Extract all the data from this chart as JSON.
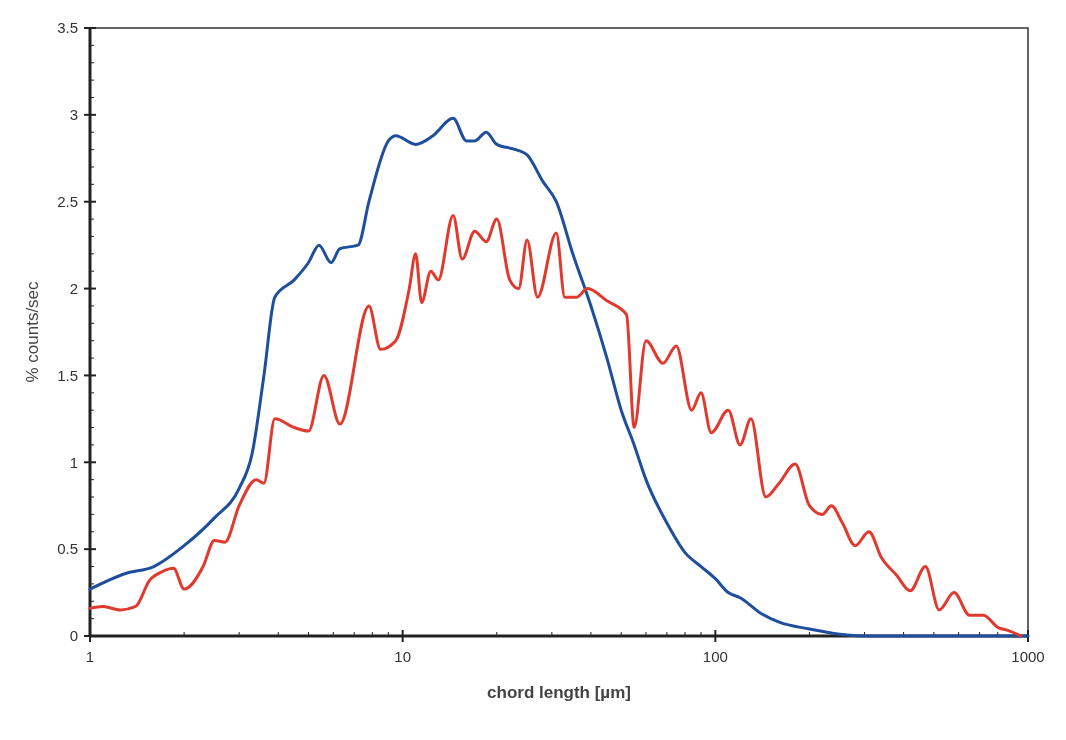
{
  "chart_data": {
    "type": "line",
    "xlabel": "chord length [µm]",
    "ylabel": "% counts/sec",
    "log": "x",
    "xlim": [
      1,
      1000
    ],
    "xticks": [
      1,
      10,
      100,
      1000
    ],
    "ylim": [
      0,
      3.5
    ],
    "yticks": [
      0,
      0.5,
      1,
      1.5,
      2,
      2.5,
      3,
      3.5
    ],
    "grid": false,
    "marker": "none",
    "line_style": "solid",
    "series": [
      {
        "color": "#1f4e9c",
        "x": [
          1,
          1.3,
          1.6,
          2,
          2.5,
          3,
          3.3,
          3.6,
          3.9,
          4.5,
          5,
          5.4,
          5.9,
          6.3,
          7.2,
          7.8,
          9,
          9.5,
          11,
          12.5,
          14.5,
          16,
          17,
          18.5,
          20,
          23,
          25,
          28,
          31,
          35,
          40,
          45,
          50,
          55,
          60,
          70,
          80,
          90,
          100,
          110,
          120,
          140,
          160,
          200,
          250,
          300,
          1000
        ],
        "values": [
          0.27,
          0.36,
          0.4,
          0.52,
          0.68,
          0.85,
          1.05,
          1.5,
          1.95,
          2.05,
          2.15,
          2.25,
          2.15,
          2.23,
          2.25,
          2.5,
          2.85,
          2.88,
          2.83,
          2.88,
          2.98,
          2.85,
          2.85,
          2.9,
          2.83,
          2.8,
          2.77,
          2.62,
          2.5,
          2.2,
          1.9,
          1.6,
          1.3,
          1.1,
          0.9,
          0.65,
          0.48,
          0.4,
          0.33,
          0.25,
          0.22,
          0.13,
          0.08,
          0.04,
          0.01,
          0,
          0
        ]
      },
      {
        "color": "#e03a2e",
        "x": [
          1,
          1.1,
          1.25,
          1.4,
          1.55,
          1.7,
          1.85,
          2,
          2.3,
          2.5,
          2.7,
          3,
          3.4,
          3.6,
          3.9,
          4.5,
          5,
          5.6,
          6.3,
          7.8,
          8.5,
          9.5,
          10.5,
          11,
          11.5,
          12.3,
          13,
          14.5,
          15.5,
          17,
          18.5,
          20,
          22,
          23.5,
          25,
          27,
          31,
          33,
          36,
          39,
          45,
          52,
          55,
          60,
          68,
          75,
          84,
          90,
          97,
          110,
          120,
          130,
          145,
          160,
          180,
          200,
          220,
          235,
          255,
          280,
          310,
          340,
          380,
          420,
          470,
          520,
          580,
          650,
          720,
          800,
          870,
          950
        ],
        "values": [
          0.16,
          0.17,
          0.15,
          0.17,
          0.32,
          0.37,
          0.39,
          0.27,
          0.4,
          0.55,
          0.54,
          0.75,
          0.9,
          0.88,
          1.25,
          1.2,
          1.18,
          1.5,
          1.22,
          1.9,
          1.65,
          1.7,
          2,
          2.2,
          1.92,
          2.1,
          2.05,
          2.42,
          2.17,
          2.33,
          2.27,
          2.4,
          2.05,
          2,
          2.28,
          1.95,
          2.32,
          1.95,
          1.95,
          2,
          1.93,
          1.85,
          1.2,
          1.7,
          1.57,
          1.67,
          1.3,
          1.4,
          1.17,
          1.3,
          1.1,
          1.25,
          0.8,
          0.88,
          0.99,
          0.75,
          0.7,
          0.75,
          0.65,
          0.52,
          0.6,
          0.45,
          0.35,
          0.26,
          0.4,
          0.15,
          0.25,
          0.12,
          0.12,
          0.05,
          0.03,
          0
        ]
      }
    ]
  }
}
